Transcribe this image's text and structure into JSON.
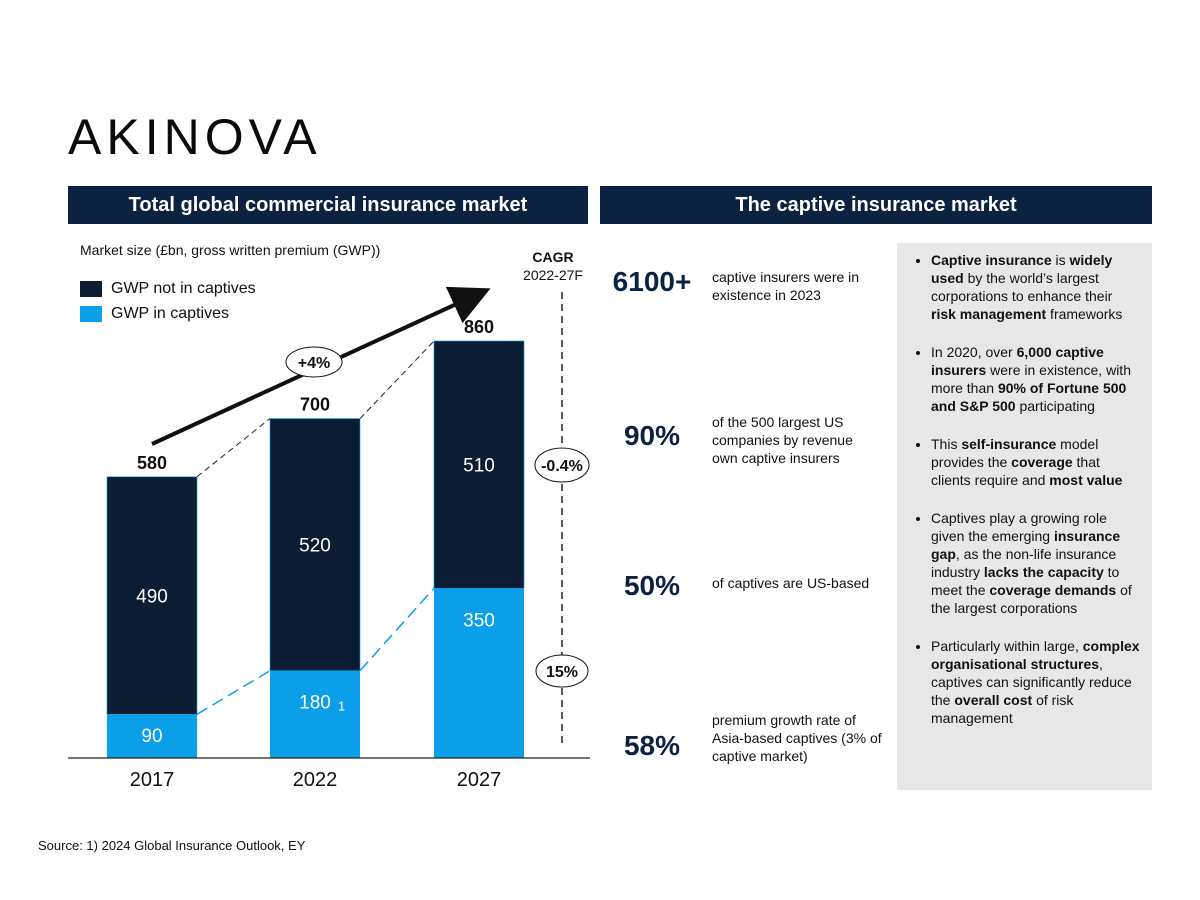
{
  "logo": "AKINOVA",
  "left_header": "Total global commercial insurance market",
  "right_header": "The captive insurance market",
  "colors": {
    "navy": "#0b1c33",
    "blue": "#0a9fe8",
    "header": "#0b2340",
    "panel": "#e7e7e7"
  },
  "chart_data": {
    "type": "bar",
    "stacked": true,
    "subtitle": "Market size (£bn, gross written premium (GWP))",
    "categories": [
      "2017",
      "2022",
      "2027"
    ],
    "series": [
      {
        "name": "GWP in captives",
        "values": [
          90,
          180,
          350
        ]
      },
      {
        "name": "GWP not in captives",
        "values": [
          490,
          520,
          510
        ]
      }
    ],
    "totals": [
      "580",
      "700",
      "860"
    ],
    "value_labels": {
      "captives": [
        "90",
        "180",
        "350"
      ],
      "not_captives": [
        "490",
        "520",
        "510"
      ]
    },
    "footnote_marker": "1",
    "growth_label": "+4%",
    "cagr_title": "CAGR",
    "cagr_period": "2022-27F",
    "cagr_not_captives": "-0.4%",
    "cagr_captives": "15%",
    "ylim": [
      0,
      900
    ],
    "legend_position": "top-left",
    "grid": false
  },
  "stats": [
    {
      "value": "6100+",
      "desc": "captive insurers were in existence in 2023"
    },
    {
      "value": "90%",
      "desc": "of the 500 largest US companies by revenue own captive insurers"
    },
    {
      "value": "50%",
      "desc": "of captives are US-based"
    },
    {
      "value": "58%",
      "desc": "premium growth rate of Asia-based captives (3% of captive market)"
    }
  ],
  "bullets": [
    [
      {
        "t": "Captive insurance",
        "b": true
      },
      {
        "t": " is ",
        "b": false
      },
      {
        "t": "widely used",
        "b": true
      },
      {
        "t": " by the world’s largest corporations to enhance their ",
        "b": false
      },
      {
        "t": "risk management",
        "b": true
      },
      {
        "t": " frameworks",
        "b": false
      }
    ],
    [
      {
        "t": "In 2020, over ",
        "b": false
      },
      {
        "t": "6,000 captive insurers",
        "b": true
      },
      {
        "t": " were in existence, with more than ",
        "b": false
      },
      {
        "t": "90% of Fortune 500 and S&P 500",
        "b": true
      },
      {
        "t": " participating",
        "b": false
      }
    ],
    [
      {
        "t": "This ",
        "b": false
      },
      {
        "t": "self-insurance",
        "b": true
      },
      {
        "t": " model provides the ",
        "b": false
      },
      {
        "t": "coverage",
        "b": true
      },
      {
        "t": " that clients require and ",
        "b": false
      },
      {
        "t": "most value",
        "b": true
      }
    ],
    [
      {
        "t": "Captives play a growing role given the emerging ",
        "b": false
      },
      {
        "t": "insurance gap",
        "b": true
      },
      {
        "t": ", as the non-life insurance industry ",
        "b": false
      },
      {
        "t": "lacks the capacity",
        "b": true
      },
      {
        "t": " to meet the ",
        "b": false
      },
      {
        "t": "coverage demands",
        "b": true
      },
      {
        "t": " of the largest corporations",
        "b": false
      }
    ],
    [
      {
        "t": "Particularly within large, ",
        "b": false
      },
      {
        "t": "complex organisational structures",
        "b": true
      },
      {
        "t": ", captives can significantly reduce the ",
        "b": false
      },
      {
        "t": "overall cost",
        "b": true
      },
      {
        "t": " of risk management",
        "b": false
      }
    ]
  ],
  "source": "Source: 1) 2024 Global Insurance Outlook, EY"
}
